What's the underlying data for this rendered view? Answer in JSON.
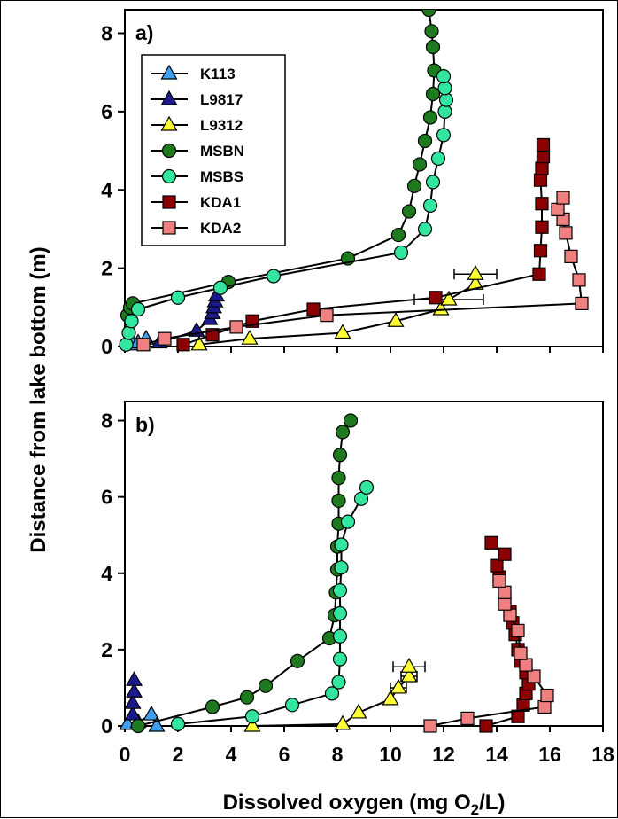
{
  "chart_data": {
    "type": "scatter",
    "xlabel": "Dissolved oxygen (mg O2/L)",
    "xlabel_main": "Dissolved oxygen (mg O",
    "xlabel_sub": "2",
    "xlabel_end": "/L)",
    "ylabel": "Distance from lake bottom (m)",
    "xlim": [
      0,
      18
    ],
    "x_ticks": [
      0,
      2,
      4,
      6,
      8,
      10,
      12,
      14,
      16,
      18
    ],
    "legend_placement": "top-left of panel a",
    "legend": [
      {
        "name": "K113",
        "marker": "triangle",
        "color": "#3fa0f0"
      },
      {
        "name": "L9817",
        "marker": "triangle",
        "color": "#1a1a8c"
      },
      {
        "name": "L9312",
        "marker": "triangle",
        "color": "#ffff33"
      },
      {
        "name": "MSBN",
        "marker": "circle",
        "color": "#1f7a1f"
      },
      {
        "name": "MSBS",
        "marker": "circle",
        "color": "#33e6a0"
      },
      {
        "name": "KDA1",
        "marker": "square",
        "color": "#8b0000"
      },
      {
        "name": "KDA2",
        "marker": "square",
        "color": "#f08080"
      }
    ],
    "panels": [
      {
        "label": "a)",
        "ylim": [
          0,
          8.6
        ],
        "y_ticks": [
          0,
          2,
          4,
          6,
          8
        ],
        "series": [
          {
            "name": "K113",
            "points": [
              [
                0.3,
                0.05
              ],
              [
                0.5,
                0.1
              ],
              [
                0.8,
                0.2
              ]
            ]
          },
          {
            "name": "L9817",
            "points": [
              [
                1.3,
                0.1
              ],
              [
                2.7,
                0.4
              ],
              [
                3.2,
                0.7
              ],
              [
                3.3,
                0.85
              ],
              [
                3.35,
                1.0
              ],
              [
                3.4,
                1.15
              ],
              [
                3.45,
                1.3
              ]
            ]
          },
          {
            "name": "L9312",
            "points": [
              [
                2.8,
                0.05
              ],
              [
                4.7,
                0.2
              ],
              [
                8.2,
                0.35
              ],
              [
                10.2,
                0.65
              ],
              [
                11.9,
                0.95
              ],
              [
                12.2,
                1.2
              ],
              [
                13.2,
                1.6
              ],
              [
                13.2,
                1.85
              ]
            ],
            "xerr": [
              0,
              0,
              0,
              0,
              0,
              1.3,
              0,
              0.8
            ]
          },
          {
            "name": "MSBN",
            "points": [
              [
                0.1,
                0.8
              ],
              [
                0.2,
                1.0
              ],
              [
                0.3,
                1.1
              ],
              [
                3.9,
                1.65
              ],
              [
                8.4,
                2.25
              ],
              [
                10.3,
                2.85
              ],
              [
                10.7,
                3.45
              ],
              [
                10.9,
                4.1
              ],
              [
                11.1,
                4.65
              ],
              [
                11.3,
                5.25
              ],
              [
                11.5,
                5.85
              ],
              [
                11.6,
                6.45
              ],
              [
                11.65,
                7.05
              ],
              [
                11.6,
                7.65
              ],
              [
                11.55,
                8.05
              ],
              [
                11.45,
                8.6
              ]
            ]
          },
          {
            "name": "MSBS",
            "points": [
              [
                0.05,
                0.05
              ],
              [
                0.15,
                0.35
              ],
              [
                0.25,
                0.65
              ],
              [
                0.5,
                0.95
              ],
              [
                2.0,
                1.25
              ],
              [
                3.6,
                1.5
              ],
              [
                5.6,
                1.8
              ],
              [
                10.4,
                2.4
              ],
              [
                11.3,
                3.0
              ],
              [
                11.5,
                3.6
              ],
              [
                11.6,
                4.2
              ],
              [
                11.8,
                4.8
              ],
              [
                12.0,
                5.4
              ],
              [
                12.05,
                6.0
              ],
              [
                12.1,
                6.3
              ],
              [
                12.05,
                6.6
              ],
              [
                12.0,
                6.9
              ]
            ]
          },
          {
            "name": "KDA1",
            "points": [
              [
                2.2,
                0.05
              ],
              [
                3.3,
                0.3
              ],
              [
                4.8,
                0.65
              ],
              [
                7.1,
                0.95
              ],
              [
                11.7,
                1.25
              ],
              [
                15.6,
                1.85
              ],
              [
                15.65,
                2.45
              ],
              [
                15.7,
                3.05
              ],
              [
                15.7,
                3.65
              ],
              [
                15.65,
                4.25
              ],
              [
                15.7,
                4.55
              ],
              [
                15.75,
                4.85
              ],
              [
                15.75,
                5.15
              ]
            ]
          },
          {
            "name": "KDA2",
            "points": [
              [
                0.7,
                0.05
              ],
              [
                1.5,
                0.2
              ],
              [
                4.2,
                0.5
              ],
              [
                7.6,
                0.8
              ],
              [
                17.2,
                1.1
              ],
              [
                17.1,
                1.7
              ],
              [
                16.8,
                2.3
              ],
              [
                16.6,
                2.9
              ],
              [
                16.5,
                3.25
              ],
              [
                16.3,
                3.5
              ],
              [
                16.5,
                3.8
              ]
            ]
          }
        ]
      },
      {
        "label": "b)",
        "ylim": [
          0,
          8.5
        ],
        "y_ticks": [
          0,
          2,
          4,
          6,
          8
        ],
        "series": [
          {
            "name": "K113",
            "points": [
              [
                0.1,
                0.05
              ],
              [
                0.5,
                0.1
              ],
              [
                1.0,
                0.3
              ],
              [
                1.2,
                0.0
              ]
            ]
          },
          {
            "name": "L9817",
            "points": [
              [
                0.3,
                0.3
              ],
              [
                0.3,
                0.6
              ],
              [
                0.35,
                0.9
              ],
              [
                0.35,
                1.2
              ]
            ]
          },
          {
            "name": "L9312",
            "points": [
              [
                4.8,
                0.0
              ],
              [
                8.2,
                0.05
              ],
              [
                8.8,
                0.35
              ],
              [
                10.0,
                0.7
              ],
              [
                10.3,
                1.0
              ],
              [
                10.7,
                1.3
              ],
              [
                10.7,
                1.55
              ]
            ],
            "xerr": [
              0,
              0,
              0,
              0,
              0.3,
              0.3,
              0.6
            ]
          },
          {
            "name": "MSBN",
            "points": [
              [
                0.5,
                0.0
              ],
              [
                3.3,
                0.5
              ],
              [
                4.6,
                0.75
              ],
              [
                5.3,
                1.05
              ],
              [
                6.5,
                1.7
              ],
              [
                7.7,
                2.3
              ],
              [
                7.9,
                2.9
              ],
              [
                7.95,
                3.5
              ],
              [
                8.0,
                4.1
              ],
              [
                8.0,
                4.7
              ],
              [
                8.05,
                5.3
              ],
              [
                8.05,
                5.9
              ],
              [
                8.05,
                6.5
              ],
              [
                8.1,
                7.1
              ],
              [
                8.2,
                7.7
              ],
              [
                8.5,
                8.0
              ]
            ]
          },
          {
            "name": "MSBS",
            "points": [
              [
                2.0,
                0.05
              ],
              [
                4.8,
                0.25
              ],
              [
                6.3,
                0.55
              ],
              [
                7.8,
                0.85
              ],
              [
                8.05,
                1.15
              ],
              [
                8.1,
                1.75
              ],
              [
                8.1,
                2.35
              ],
              [
                8.1,
                2.95
              ],
              [
                8.1,
                3.55
              ],
              [
                8.15,
                4.15
              ],
              [
                8.15,
                4.75
              ],
              [
                8.4,
                5.35
              ],
              [
                8.9,
                5.95
              ],
              [
                9.1,
                6.25
              ]
            ]
          },
          {
            "name": "KDA1",
            "points": [
              [
                13.6,
                0.0
              ],
              [
                14.8,
                0.25
              ],
              [
                15.0,
                0.55
              ],
              [
                15.1,
                0.85
              ],
              [
                15.2,
                1.1
              ],
              [
                15.1,
                1.4
              ],
              [
                14.9,
                1.7
              ],
              [
                14.8,
                2.0
              ],
              [
                14.7,
                2.4
              ],
              [
                14.6,
                2.7
              ],
              [
                14.5,
                3.0
              ],
              [
                14.3,
                3.3
              ],
              [
                14.1,
                3.9
              ],
              [
                14.0,
                4.2
              ],
              [
                14.3,
                4.5
              ],
              [
                13.8,
                4.8
              ]
            ]
          },
          {
            "name": "KDA2",
            "points": [
              [
                11.5,
                0.0
              ],
              [
                12.9,
                0.2
              ],
              [
                15.8,
                0.5
              ],
              [
                15.9,
                0.8
              ],
              [
                15.4,
                1.3
              ],
              [
                15.1,
                1.6
              ],
              [
                14.9,
                1.9
              ],
              [
                14.8,
                2.5
              ],
              [
                14.5,
                2.9
              ],
              [
                14.3,
                3.2
              ],
              [
                14.3,
                3.5
              ],
              [
                14.1,
                3.8
              ]
            ]
          }
        ]
      }
    ]
  }
}
